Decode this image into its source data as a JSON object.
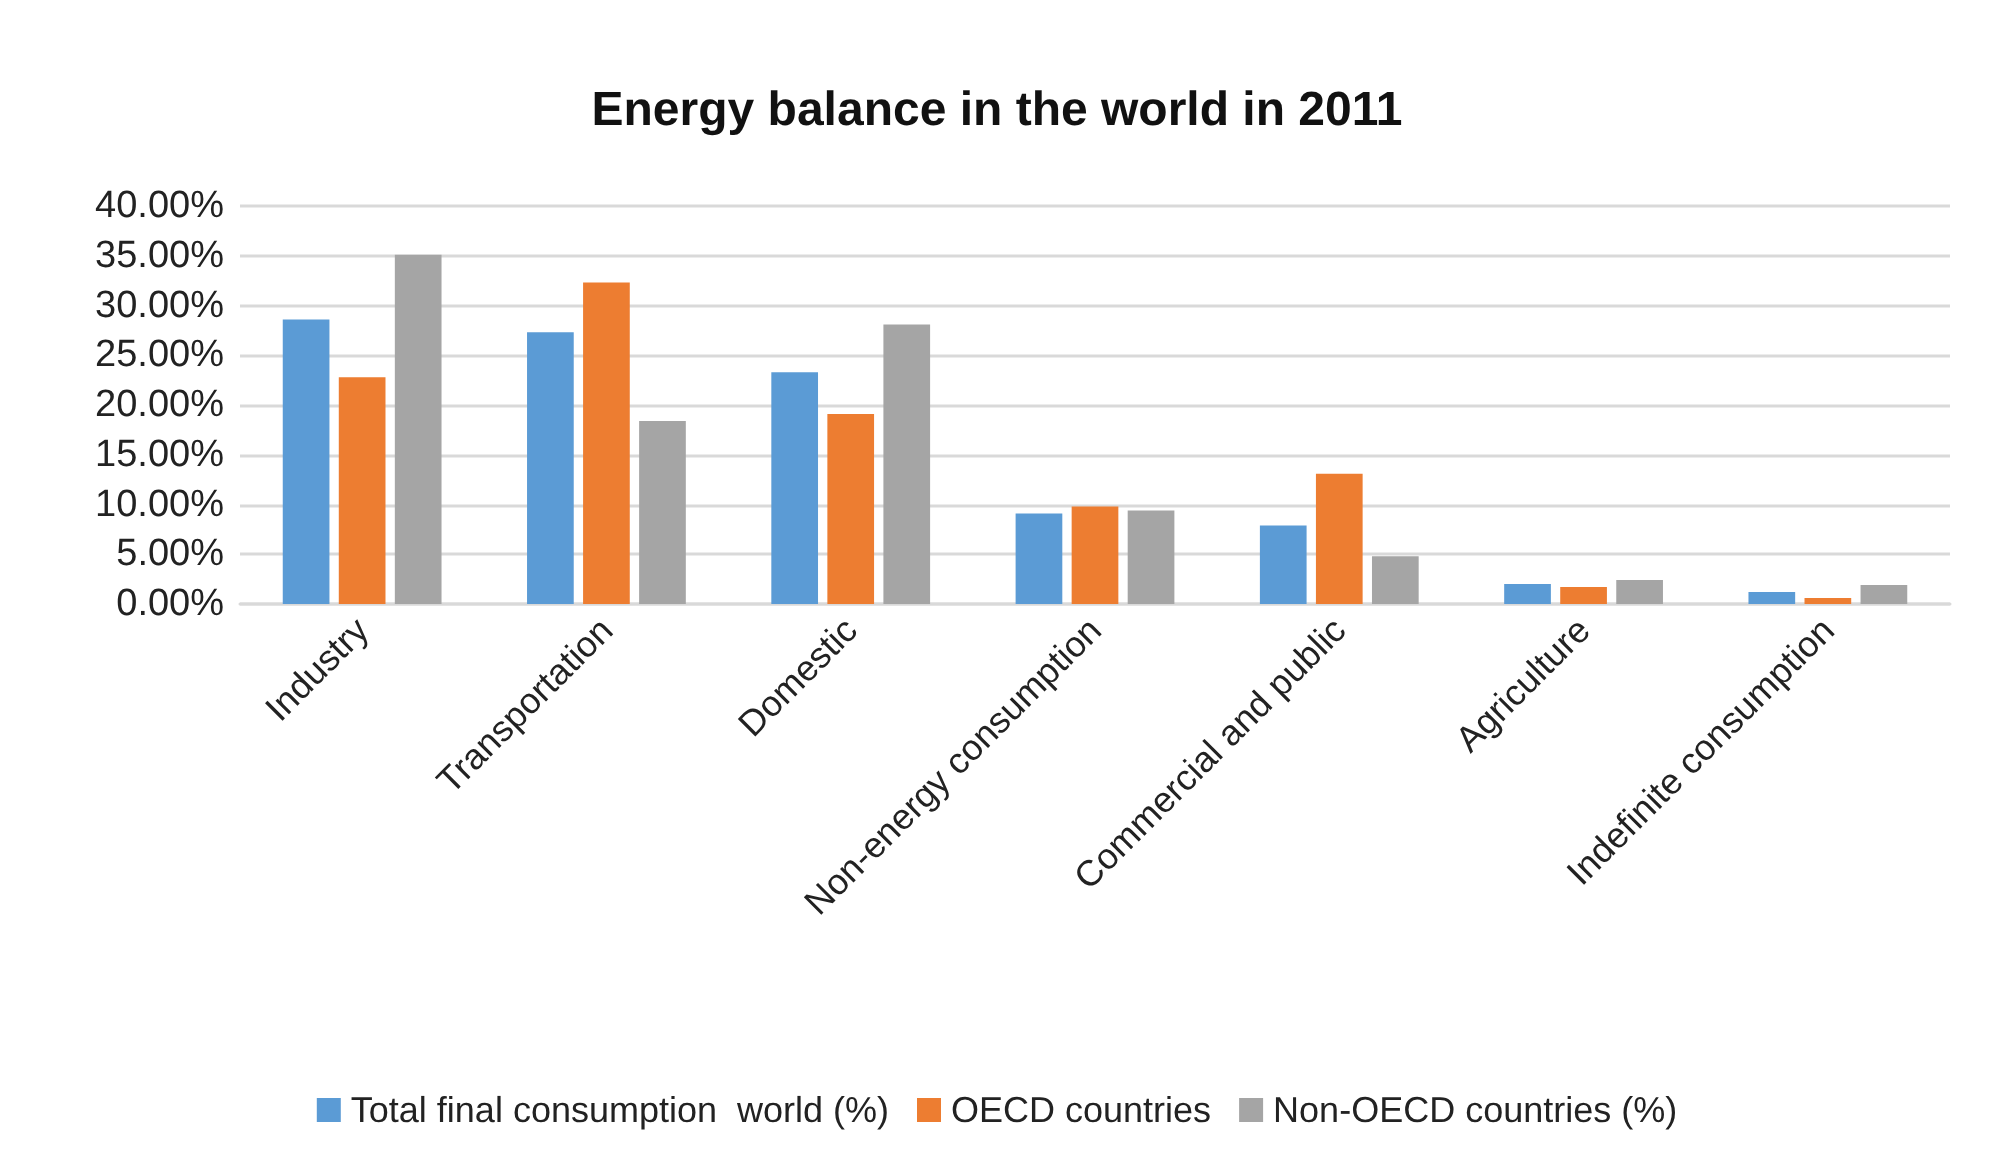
{
  "chart_data": {
    "type": "bar",
    "title": "Energy balance in the world in 2011",
    "categories": [
      "Industry",
      "Transportation",
      "Domestic",
      "Non-energy consumption",
      "Commercial and public",
      "Agriculture",
      "Indefinite consumption"
    ],
    "series": [
      {
        "name": "Total final consumption  world (%)",
        "color": "#5b9bd5",
        "values": [
          28.6,
          27.3,
          23.3,
          9.1,
          7.9,
          2.0,
          1.2
        ]
      },
      {
        "name": "OECD countries",
        "color": "#ed7d31",
        "values": [
          22.8,
          32.3,
          19.1,
          9.8,
          13.1,
          1.7,
          0.6
        ]
      },
      {
        "name": "Non-OECD countries (%)",
        "color": "#a5a5a5",
        "values": [
          35.1,
          18.4,
          28.1,
          9.4,
          4.8,
          2.4,
          1.9
        ]
      }
    ],
    "ylim": [
      0,
      40
    ],
    "yticks": [
      {
        "value": 0,
        "label": "0.00%"
      },
      {
        "value": 5,
        "label": "5.00%"
      },
      {
        "value": 10,
        "label": "10.00%"
      },
      {
        "value": 15,
        "label": "15.00%"
      },
      {
        "value": 20,
        "label": "20.00%"
      },
      {
        "value": 25,
        "label": "25.00%"
      },
      {
        "value": 30,
        "label": "30.00%"
      },
      {
        "value": 35,
        "label": "35.00%"
      },
      {
        "value": 40,
        "label": "40.00%"
      }
    ],
    "grid": "y",
    "legend": "bottom"
  }
}
